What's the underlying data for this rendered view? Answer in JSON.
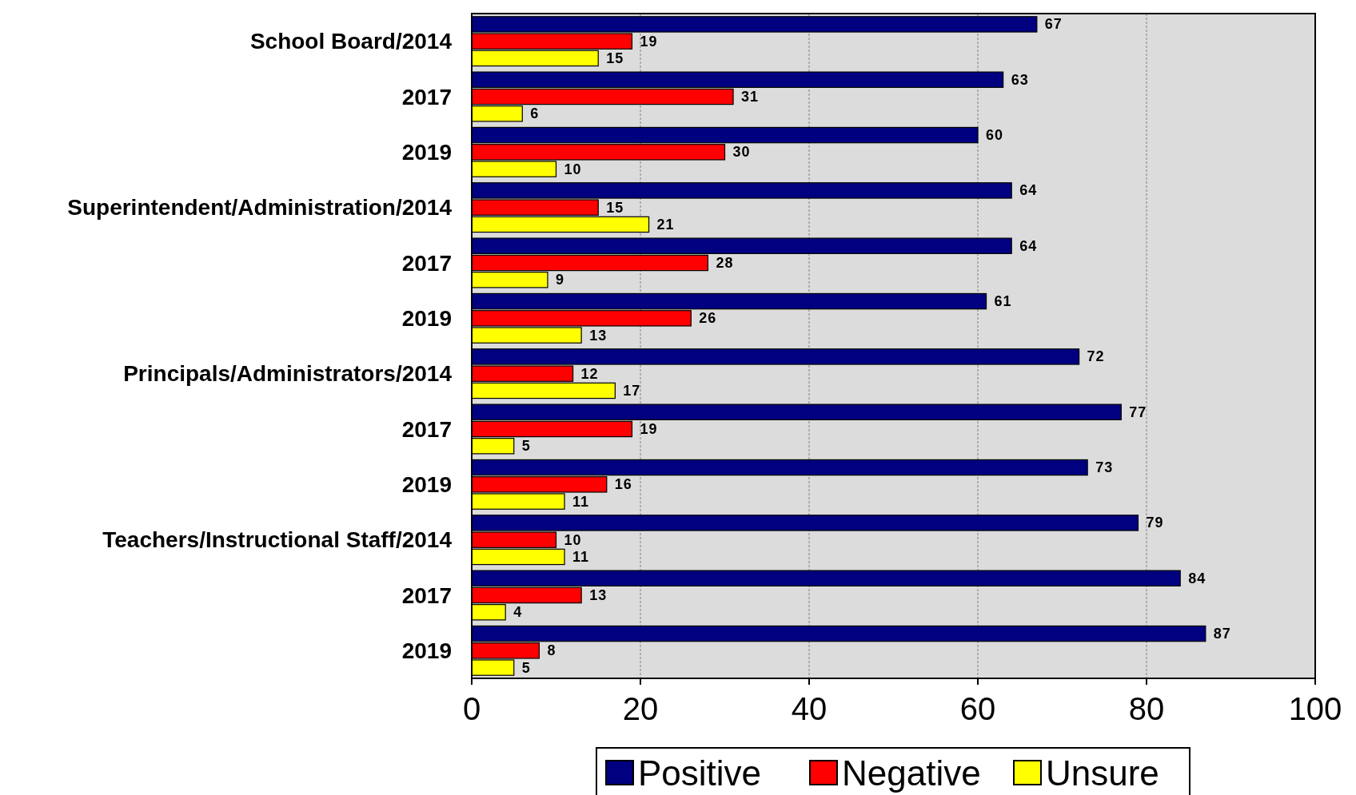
{
  "chart_data": {
    "type": "bar",
    "orientation": "horizontal",
    "categories": [
      "School Board/2014",
      "2017",
      "2019",
      "Superintendent/Administration/2014",
      "2017",
      "2019",
      "Principals/Administrators/2014",
      "2017",
      "2019",
      "Teachers/Instructional Staff/2014",
      "2017",
      "2019"
    ],
    "series": [
      {
        "name": "Positive",
        "color": "#000080",
        "values": [
          67,
          63,
          60,
          64,
          64,
          61,
          72,
          77,
          73,
          79,
          84,
          87
        ]
      },
      {
        "name": "Negative",
        "color": "#ff0000",
        "values": [
          19,
          31,
          30,
          15,
          28,
          26,
          12,
          19,
          16,
          10,
          13,
          8
        ]
      },
      {
        "name": "Unsure",
        "color": "#ffff00",
        "values": [
          15,
          6,
          10,
          21,
          9,
          13,
          17,
          5,
          11,
          11,
          4,
          5
        ]
      }
    ],
    "xlim": [
      0,
      100
    ],
    "xticks": [
      0,
      20,
      40,
      60,
      80,
      100
    ],
    "grid": "x",
    "legend": "bottom",
    "data_labels": true
  }
}
